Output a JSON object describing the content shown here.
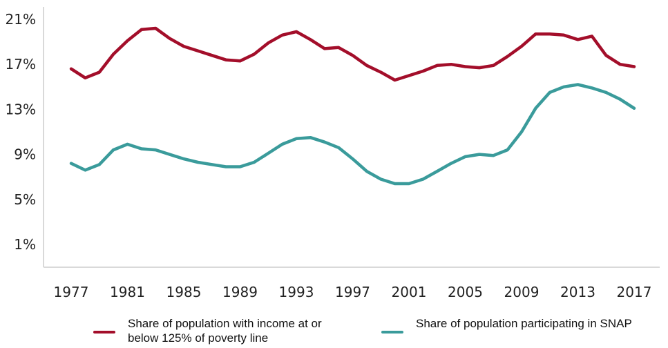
{
  "chart_data": {
    "type": "line",
    "title": "",
    "xlabel": "",
    "ylabel": "",
    "xlim": [
      1977,
      2017
    ],
    "ylim": [
      -1,
      22
    ],
    "y_ticks": [
      1,
      5,
      9,
      13,
      17,
      21
    ],
    "y_tick_labels": [
      "1%",
      "5%",
      "9%",
      "13%",
      "17%",
      "21%"
    ],
    "x_ticks": [
      1977,
      1981,
      1985,
      1989,
      1993,
      1997,
      2001,
      2005,
      2009,
      2013,
      2017
    ],
    "x_tick_labels": [
      "1977",
      "1981",
      "1985",
      "1989",
      "1993",
      "1997",
      "2001",
      "2005",
      "2009",
      "2013",
      "2017"
    ],
    "grid": false,
    "legend_position": "bottom",
    "series": [
      {
        "name": "Share of population with income at or below 125% of poverty line",
        "color": "#a30e2a",
        "x": [
          1977,
          1978,
          1979,
          1980,
          1981,
          1982,
          1983,
          1984,
          1985,
          1986,
          1987,
          1988,
          1989,
          1990,
          1991,
          1992,
          1993,
          1994,
          1995,
          1996,
          1997,
          1998,
          1999,
          2000,
          2001,
          2002,
          2003,
          2004,
          2005,
          2006,
          2007,
          2008,
          2009,
          2010,
          2011,
          2012,
          2013,
          2014,
          2015,
          2016,
          2017
        ],
        "values": [
          16.6,
          15.8,
          16.3,
          17.9,
          19.1,
          20.1,
          20.2,
          19.3,
          18.6,
          18.2,
          17.8,
          17.4,
          17.3,
          17.9,
          18.9,
          19.6,
          19.9,
          19.2,
          18.4,
          18.5,
          17.8,
          16.9,
          16.3,
          15.6,
          16.0,
          16.4,
          16.9,
          17.0,
          16.8,
          16.7,
          16.9,
          17.7,
          18.6,
          19.7,
          19.7,
          19.6,
          19.2,
          19.5,
          17.8,
          17.0,
          16.8
        ]
      },
      {
        "name": "Share of population participating in SNAP",
        "color": "#3a9b9b",
        "x": [
          1977,
          1978,
          1979,
          1980,
          1981,
          1982,
          1983,
          1984,
          1985,
          1986,
          1987,
          1988,
          1989,
          1990,
          1991,
          1992,
          1993,
          1994,
          1995,
          1996,
          1997,
          1998,
          1999,
          2000,
          2001,
          2002,
          2003,
          2004,
          2005,
          2006,
          2007,
          2008,
          2009,
          2010,
          2011,
          2012,
          2013,
          2014,
          2015,
          2016,
          2017
        ],
        "values": [
          8.2,
          7.6,
          8.1,
          9.4,
          9.9,
          9.5,
          9.4,
          9.0,
          8.6,
          8.3,
          8.1,
          7.9,
          7.9,
          8.3,
          9.1,
          9.9,
          10.4,
          10.5,
          10.1,
          9.6,
          8.6,
          7.5,
          6.8,
          6.4,
          6.4,
          6.8,
          7.5,
          8.2,
          8.8,
          9.0,
          8.9,
          9.4,
          11.0,
          13.1,
          14.5,
          15.0,
          15.2,
          14.9,
          14.5,
          13.9,
          13.1
        ]
      }
    ]
  },
  "legend": {
    "items": [
      {
        "label": "Share of population with income at or\nbelow 125% of poverty line",
        "color": "#a30e2a"
      },
      {
        "label": "Share of population participating in SNAP",
        "color": "#3a9b9b"
      }
    ]
  }
}
